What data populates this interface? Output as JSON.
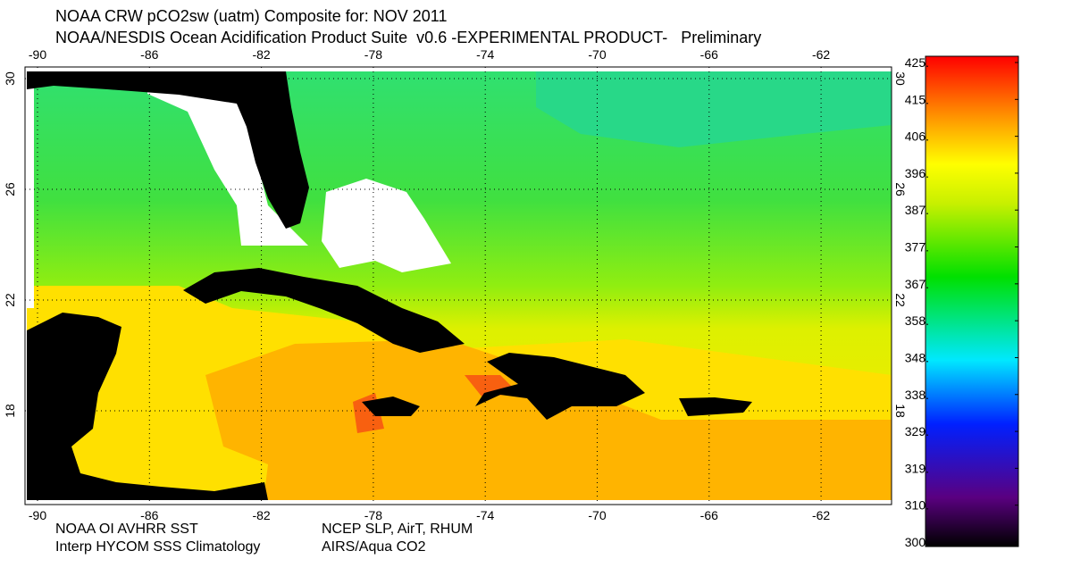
{
  "header": {
    "title": "NOAA CRW pCO2sw (uatm) Composite for: NOV 2011",
    "subtitle": "NOAA/NESDIS Ocean Acidification Product Suite  v0.6 -EXPERIMENTAL PRODUCT-   Preliminary"
  },
  "map": {
    "lon_labels": [
      "-90",
      "-86",
      "-82",
      "-78",
      "-74",
      "-70",
      "-66",
      "-62"
    ],
    "lat_labels": [
      "30",
      "26",
      "22",
      "18"
    ]
  },
  "colorbar": {
    "labels": [
      "425.",
      "415.",
      "406.",
      "396.",
      "387.",
      "377.",
      "367.",
      "358.",
      "348.",
      "338.",
      "329.",
      "319.",
      "310.",
      "300."
    ]
  },
  "footer": {
    "left_1": "NOAA OI AVHRR SST",
    "left_2": "Interp HYCOM SSS Climatology",
    "right_1": "NCEP SLP, AirT, RHUM",
    "right_2": "AIRS/Aqua CO2"
  }
}
